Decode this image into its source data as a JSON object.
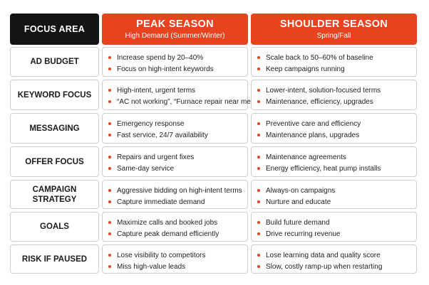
{
  "header": {
    "focus_area": "FOCUS AREA",
    "peak": {
      "title": "PEAK SEASON",
      "subtitle": "High Demand (Summer/Winter)"
    },
    "shoulder": {
      "title": "SHOULDER SEASON",
      "subtitle": "Spring/Fall"
    }
  },
  "rows": [
    {
      "label": "AD BUDGET",
      "peak": [
        "Increase spend by 20–40%",
        "Focus on high-intent keywords"
      ],
      "shoulder": [
        "Scale back to 50–60% of baseline",
        "Keep campaigns running"
      ]
    },
    {
      "label": "KEYWORD FOCUS",
      "peak": [
        "High-intent, urgent terms",
        "“AC not working”, “Furnace repair near me”"
      ],
      "shoulder": [
        "Lower-intent, solution-focused terms",
        "Maintenance, efficiency, upgrades"
      ]
    },
    {
      "label": "MESSAGING",
      "peak": [
        "Emergency response",
        "Fast service, 24/7 availability"
      ],
      "shoulder": [
        "Preventive care and efficiency",
        "Maintenance plans, upgrades"
      ]
    },
    {
      "label": "OFFER FOCUS",
      "peak": [
        "Repairs and urgent fixes",
        "Same-day service"
      ],
      "shoulder": [
        "Maintenance agreements",
        "Energy efficiency, heat pump installs"
      ]
    },
    {
      "label": "CAMPAIGN\nSTRATEGY",
      "peak": [
        "Aggressive bidding on high-intent terms",
        "Capture immediate demand"
      ],
      "shoulder": [
        "Always-on campaigns",
        "Nurture and educate"
      ]
    },
    {
      "label": "GOALS",
      "peak": [
        "Maximize calls and booked jobs",
        "Capture peak demand efficiently"
      ],
      "shoulder": [
        "Build future demand",
        "Drive recurring revenue"
      ]
    },
    {
      "label": "RISK IF PAUSED",
      "peak": [
        "Lose visibility to competitors",
        "Miss high-value leads"
      ],
      "shoulder": [
        "Lose learning data and quality score",
        "Slow, costly ramp-up when restarting"
      ]
    }
  ]
}
